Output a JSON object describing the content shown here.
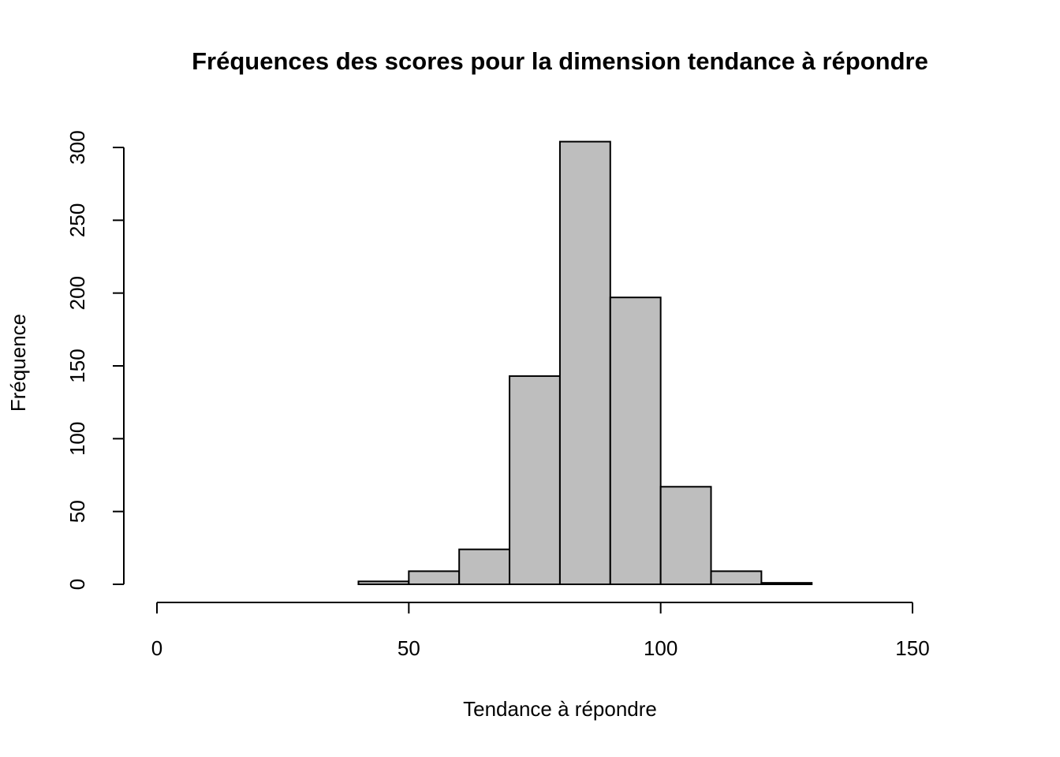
{
  "chart_data": {
    "type": "histogram",
    "title": "Fréquences des scores pour la dimension tendance à répondre",
    "x_label": "Tendance à répondre",
    "y_label": "Fréquence",
    "bins": [
      40,
      50,
      60,
      70,
      80,
      90,
      100,
      110,
      120,
      130
    ],
    "values": [
      2,
      9,
      24,
      143,
      304,
      197,
      67,
      9,
      1
    ],
    "color": "#bebebe",
    "xlim": [
      0,
      150
    ],
    "xticks": [
      0,
      50,
      100,
      150
    ],
    "ylim": [
      0,
      300
    ],
    "yticks": [
      0,
      50,
      100,
      150,
      200,
      250,
      300
    ]
  }
}
